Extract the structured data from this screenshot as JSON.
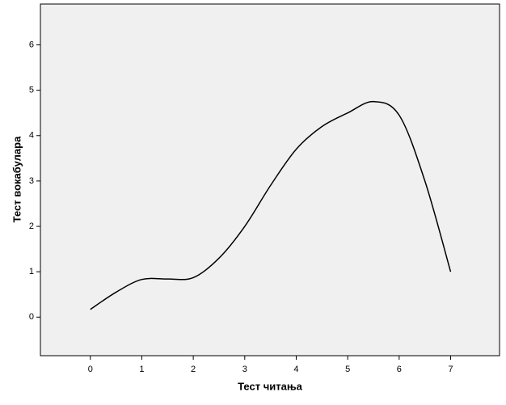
{
  "chart_data": {
    "type": "line",
    "xlabel": "Тест читања",
    "ylabel": "Тест вокабулара",
    "x": [
      0,
      0.5,
      1,
      1.5,
      2,
      2.5,
      3,
      3.5,
      4,
      4.5,
      5,
      5.5,
      6,
      6.5,
      7
    ],
    "series": [
      {
        "color": "#000000",
        "values": [
          0.17,
          0.55,
          0.83,
          0.84,
          0.87,
          1.3,
          2.0,
          2.9,
          3.7,
          4.2,
          4.5,
          4.75,
          4.45,
          3.0,
          1.0
        ]
      }
    ],
    "xlim": [
      -0.97,
      7.95
    ],
    "xticks": [
      0,
      1,
      2,
      3,
      4,
      5,
      6,
      7
    ],
    "ylim": [
      -0.85,
      6.9
    ],
    "yticks": [
      0,
      1,
      2,
      3,
      4,
      5,
      6
    ]
  }
}
